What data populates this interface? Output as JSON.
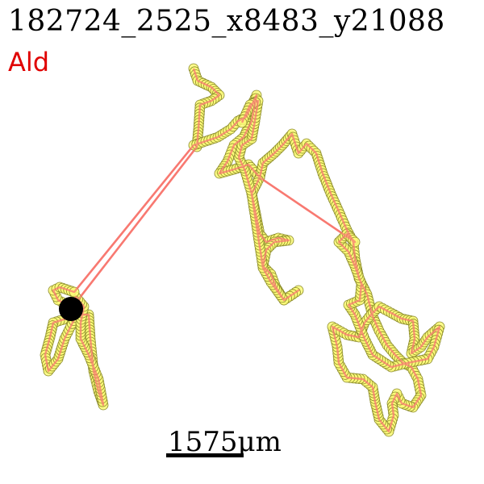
{
  "header": {
    "title": "182724_2525_x8483_y21088",
    "subtitle": "Ald"
  },
  "scale": {
    "label": "1575μm"
  },
  "style": {
    "path_color": "#f87a72",
    "marker_fill": "#fbfa78",
    "marker_stroke": "#8a8a2a",
    "start_marker_color": "#000000",
    "subtitle_color": "#e00000"
  }
}
